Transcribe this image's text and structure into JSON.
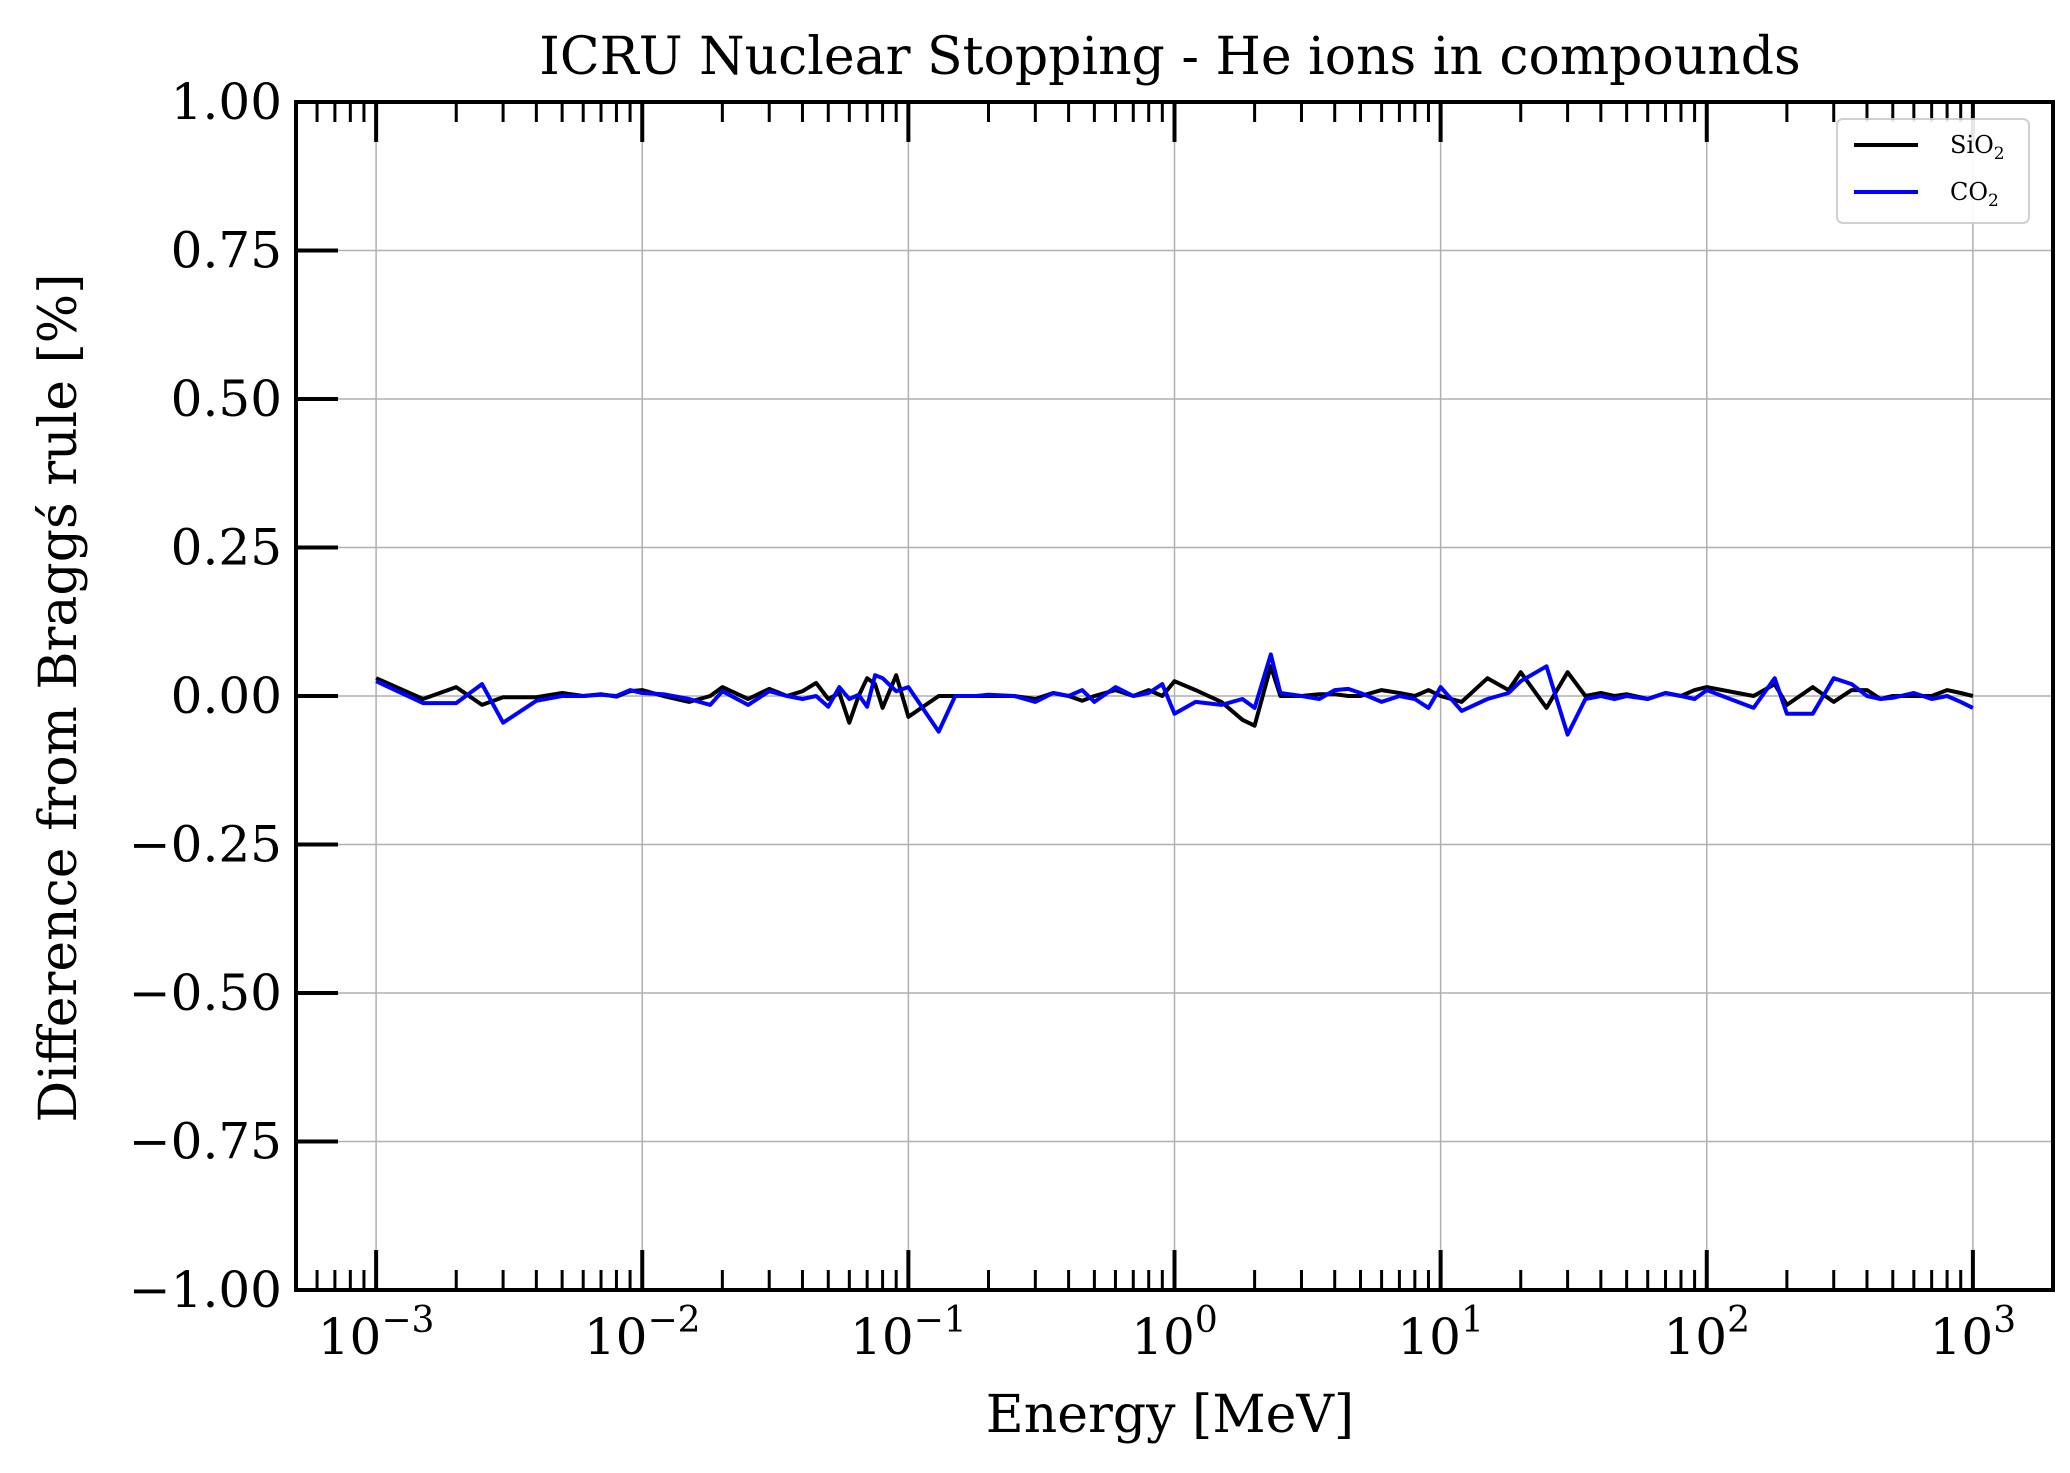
{
  "chart_data": {
    "type": "line",
    "title": "ICRU Nuclear Stopping - He ions in compounds",
    "xlabel": "Energy [MeV]",
    "ylabel": "Difference from Braggś rule [%]",
    "xscale": "log",
    "xlim": [
      0.0005,
      2000
    ],
    "ylim": [
      -1.0,
      1.0
    ],
    "grid": true,
    "legend_position": "top-right",
    "x_ticks": [
      {
        "value": 0.001,
        "base": "10",
        "exp": "−3"
      },
      {
        "value": 0.01,
        "base": "10",
        "exp": "−2"
      },
      {
        "value": 0.1,
        "base": "10",
        "exp": "−1"
      },
      {
        "value": 1,
        "base": "10",
        "exp": "0"
      },
      {
        "value": 10,
        "base": "10",
        "exp": "1"
      },
      {
        "value": 100,
        "base": "10",
        "exp": "2"
      },
      {
        "value": 1000,
        "base": "10",
        "exp": "3"
      }
    ],
    "y_ticks": [
      {
        "value": 1.0,
        "label": "1.00"
      },
      {
        "value": 0.75,
        "label": "0.75"
      },
      {
        "value": 0.5,
        "label": "0.50"
      },
      {
        "value": 0.25,
        "label": "0.25"
      },
      {
        "value": 0.0,
        "label": "0.00"
      },
      {
        "value": -0.25,
        "label": "−0.25"
      },
      {
        "value": -0.5,
        "label": "−0.50"
      },
      {
        "value": -0.75,
        "label": "−0.75"
      },
      {
        "value": -1.0,
        "label": "−1.00"
      }
    ],
    "series": [
      {
        "name": "SiO",
        "subscript": "2",
        "color": "#000000",
        "x": [
          0.001,
          0.0015,
          0.002,
          0.0025,
          0.003,
          0.004,
          0.005,
          0.006,
          0.007,
          0.008,
          0.009,
          0.01,
          0.012,
          0.015,
          0.018,
          0.02,
          0.025,
          0.03,
          0.035,
          0.04,
          0.045,
          0.05,
          0.055,
          0.06,
          0.065,
          0.07,
          0.075,
          0.08,
          0.09,
          0.1,
          0.13,
          0.15,
          0.18,
          0.2,
          0.25,
          0.3,
          0.35,
          0.4,
          0.45,
          0.5,
          0.6,
          0.7,
          0.8,
          0.9,
          1.0,
          1.2,
          1.5,
          1.8,
          2.0,
          2.3,
          2.5,
          3.0,
          3.5,
          4.0,
          4.5,
          5.0,
          6.0,
          7.0,
          8.0,
          9.0,
          10,
          12,
          15,
          18,
          20,
          25,
          30,
          35,
          40,
          45,
          50,
          60,
          70,
          80,
          90,
          100,
          150,
          180,
          200,
          250,
          300,
          350,
          400,
          450,
          500,
          600,
          700,
          800,
          900,
          1000
        ],
        "values": [
          0.03,
          -0.005,
          0.015,
          -0.015,
          -0.002,
          -0.002,
          0.005,
          0.0,
          0.003,
          -0.001,
          0.008,
          0.01,
          0.0,
          -0.01,
          0.0,
          0.015,
          -0.005,
          0.012,
          0.0,
          0.008,
          0.022,
          -0.005,
          0.005,
          -0.045,
          0.0,
          0.03,
          0.02,
          -0.02,
          0.035,
          -0.035,
          0.0,
          0.0,
          0.0,
          0.0,
          0.0,
          -0.005,
          0.005,
          0.0,
          -0.008,
          0.0,
          0.01,
          0.0,
          0.01,
          0.0,
          0.025,
          0.01,
          -0.01,
          -0.04,
          -0.05,
          0.05,
          0.0,
          0.0,
          0.003,
          0.003,
          0.0,
          0.0,
          0.01,
          0.005,
          0.0,
          0.01,
          0.0,
          -0.01,
          0.03,
          0.01,
          0.04,
          -0.02,
          0.04,
          0.0,
          0.005,
          0.0,
          0.003,
          -0.005,
          0.005,
          0.0,
          0.01,
          0.015,
          0.0,
          0.02,
          -0.015,
          0.015,
          -0.01,
          0.01,
          0.01,
          -0.005,
          0.0,
          0.0,
          0.0,
          0.01,
          0.005,
          0.0
        ]
      },
      {
        "name": "CO",
        "subscript": "2",
        "color": "#0000ff",
        "x": [
          0.001,
          0.0015,
          0.002,
          0.0025,
          0.003,
          0.004,
          0.005,
          0.006,
          0.007,
          0.008,
          0.009,
          0.01,
          0.012,
          0.015,
          0.018,
          0.02,
          0.025,
          0.03,
          0.035,
          0.04,
          0.045,
          0.05,
          0.055,
          0.06,
          0.065,
          0.07,
          0.075,
          0.08,
          0.09,
          0.1,
          0.13,
          0.15,
          0.18,
          0.2,
          0.25,
          0.3,
          0.35,
          0.4,
          0.45,
          0.5,
          0.6,
          0.7,
          0.8,
          0.9,
          1.0,
          1.2,
          1.5,
          1.8,
          2.0,
          2.3,
          2.5,
          3.0,
          3.5,
          4.0,
          4.5,
          5.0,
          6.0,
          7.0,
          8.0,
          9.0,
          10,
          12,
          15,
          18,
          20,
          25,
          30,
          35,
          40,
          45,
          50,
          60,
          70,
          80,
          90,
          100,
          150,
          180,
          200,
          250,
          300,
          350,
          400,
          450,
          500,
          600,
          700,
          800,
          900,
          1000
        ],
        "values": [
          0.025,
          -0.012,
          -0.012,
          0.02,
          -0.045,
          -0.008,
          0.0,
          0.0,
          0.002,
          0.0,
          0.01,
          0.005,
          0.003,
          -0.005,
          -0.015,
          0.008,
          -0.015,
          0.008,
          0.0,
          -0.005,
          0.0,
          -0.018,
          0.015,
          -0.005,
          0.002,
          -0.018,
          0.035,
          0.03,
          0.008,
          0.015,
          -0.06,
          0.0,
          0.0,
          0.002,
          0.0,
          -0.01,
          0.005,
          0.0,
          0.01,
          -0.01,
          0.015,
          0.0,
          0.005,
          0.02,
          -0.03,
          -0.01,
          -0.015,
          -0.005,
          -0.02,
          0.07,
          0.005,
          0.0,
          -0.005,
          0.01,
          0.012,
          0.005,
          -0.01,
          0.0,
          -0.005,
          -0.02,
          0.015,
          -0.025,
          -0.005,
          0.005,
          0.025,
          0.05,
          -0.065,
          -0.005,
          0.0,
          -0.005,
          0.0,
          -0.005,
          0.005,
          0.0,
          -0.005,
          0.01,
          -0.02,
          0.03,
          -0.03,
          -0.03,
          0.03,
          0.02,
          0.0,
          -0.005,
          -0.003,
          0.005,
          -0.005,
          0.0,
          -0.01,
          -0.02
        ]
      }
    ]
  }
}
